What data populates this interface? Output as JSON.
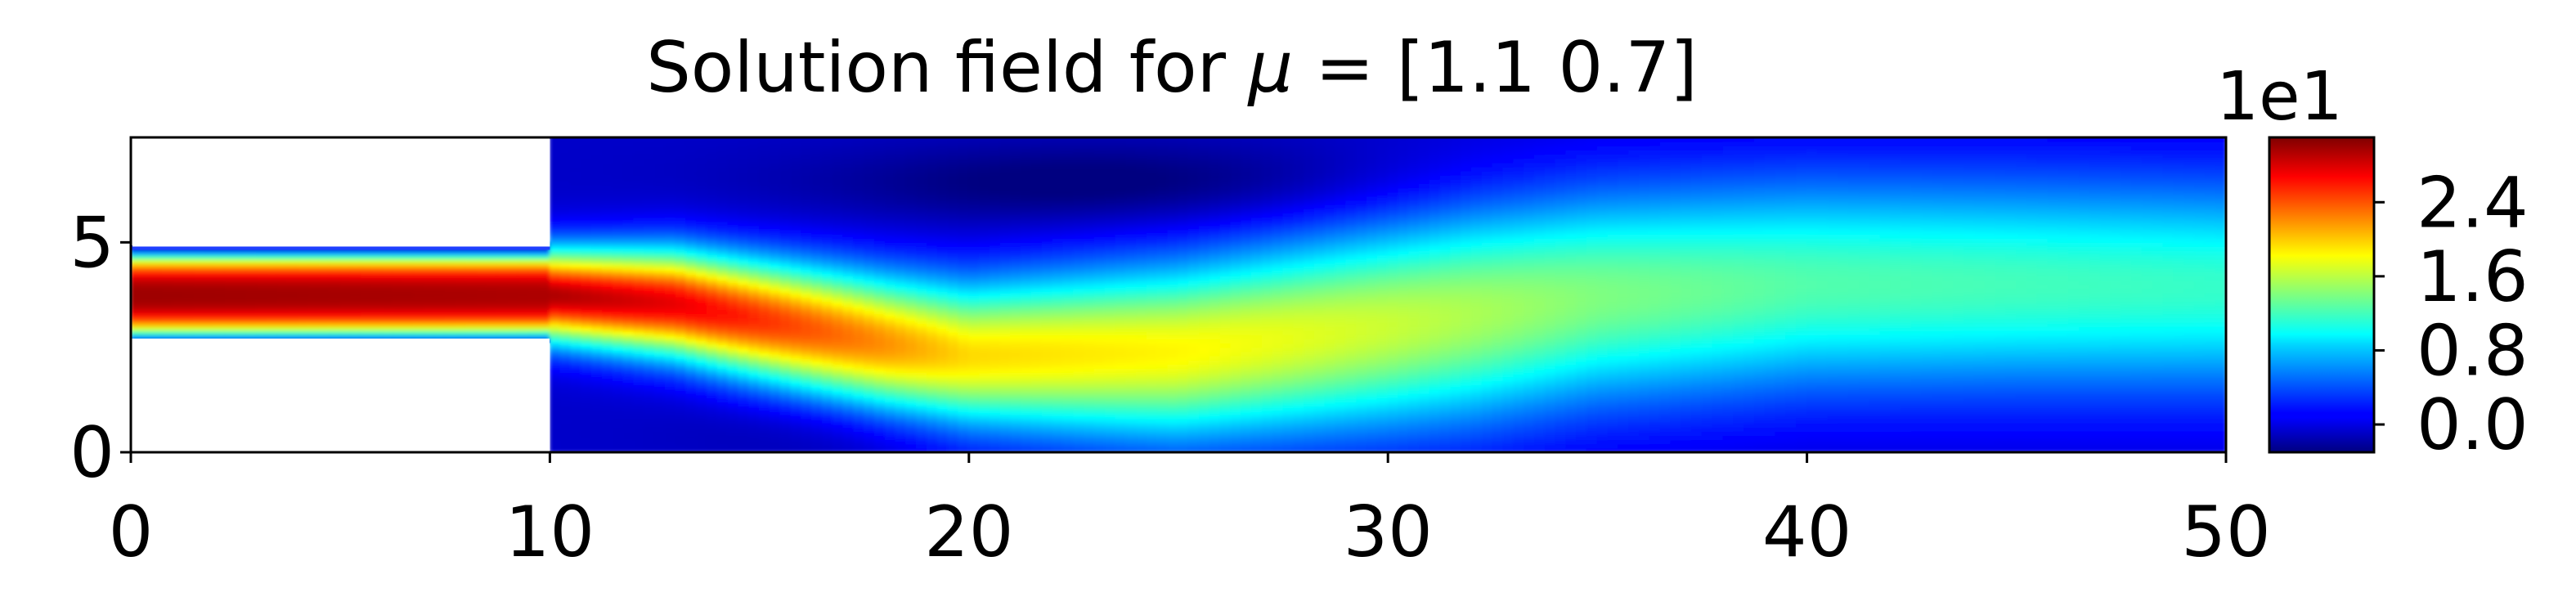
{
  "chart_data": {
    "type": "heatmap",
    "title_prefix": "Solution field for",
    "title_symbol": "μ",
    "title_suffix": " = [1.1 0.7]",
    "xlabel": "",
    "ylabel": "",
    "xlim": [
      0,
      50
    ],
    "ylim": [
      0,
      7.5
    ],
    "x_ticks": [
      0,
      10,
      20,
      30,
      40,
      50
    ],
    "y_ticks": [
      0,
      5
    ],
    "domain": {
      "inlet_channel": {
        "x": [
          0,
          10
        ],
        "y": [
          2.65,
          4.85
        ]
      },
      "main_channel": {
        "x": [
          10,
          50
        ],
        "y": [
          0,
          7.5
        ]
      }
    },
    "colorbar": {
      "colormap": "jet",
      "scale_label": "1e1",
      "range": [
        -0.3,
        3.1
      ],
      "ticks": [
        0.0,
        0.8,
        1.6,
        2.4
      ],
      "tick_labels": [
        "0.0",
        "0.8",
        "1.6",
        "2.4"
      ]
    },
    "field_profile": {
      "description_units": "centerline y and peak value along x (in colorbar units x1e1)",
      "x": [
        0,
        10,
        13,
        18,
        20,
        25,
        30,
        35,
        40,
        45,
        50
      ],
      "center_y": [
        3.75,
        3.75,
        3.55,
        2.6,
        2.3,
        2.4,
        3.0,
        3.7,
        4.0,
        4.0,
        3.95
      ],
      "peak": [
        3.0,
        2.95,
        2.75,
        2.2,
        1.95,
        1.85,
        1.65,
        1.4,
        1.25,
        1.2,
        1.15
      ]
    }
  }
}
